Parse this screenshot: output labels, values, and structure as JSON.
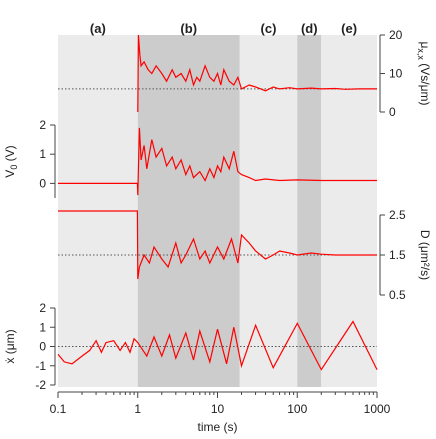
{
  "chart_data": {
    "type": "line",
    "x_axis": {
      "scale": "log",
      "range": [
        0.1,
        1000
      ],
      "ticks": [
        "0.1",
        "1",
        "10",
        "100",
        "1000"
      ],
      "label": "time (s)"
    },
    "phases": [
      {
        "label": "(a)",
        "start": 0.1,
        "end": 1,
        "color": "#ebebeb"
      },
      {
        "label": "(b)",
        "start": 1,
        "end": 19,
        "color": "#cccccc"
      },
      {
        "label": "(c)",
        "start": 19,
        "end": 100,
        "color": "#ebebeb"
      },
      {
        "label": "(d)",
        "start": 100,
        "end": 200,
        "color": "#cccccc"
      },
      {
        "label": "(e)",
        "start": 200,
        "end": 1000,
        "color": "#ebebeb"
      }
    ],
    "panels": [
      {
        "id": "mu",
        "y_side": "right",
        "ylabel_main": "μ",
        "ylabel_sub": "x,x",
        "ylabel_unit": " (Vs/μm)",
        "ylim": [
          0,
          20
        ],
        "yticks": [
          "0",
          "10",
          "20"
        ],
        "reference": 6,
        "series": {
          "name": "μx,x",
          "color": "#ff0000",
          "x": [
            1,
            1.02,
            1.06,
            1.1,
            1.2,
            1.35,
            1.5,
            1.7,
            2,
            2.3,
            2.7,
            3,
            3.5,
            4,
            4.5,
            5,
            5.5,
            6,
            7,
            8,
            9,
            10,
            11,
            12,
            14,
            16,
            18,
            20,
            25,
            30,
            40,
            50,
            60,
            80,
            100,
            150,
            200,
            300,
            400,
            600,
            800,
            1000
          ],
          "y": [
            0,
            20,
            15,
            12,
            13,
            11,
            10,
            12,
            10,
            8,
            11,
            9,
            10,
            8,
            11,
            7,
            9,
            8,
            12,
            9,
            8,
            10,
            7,
            11,
            8,
            7,
            9,
            6,
            7,
            6.5,
            5.5,
            6.5,
            6,
            6.3,
            6,
            6.2,
            6,
            6.1,
            5.9,
            6,
            6,
            6
          ]
        }
      },
      {
        "id": "v0",
        "y_side": "left",
        "ylabel_main": "V",
        "ylabel_sub": "0",
        "ylabel_unit": " (V)",
        "ylim": [
          -0.5,
          2
        ],
        "yticks": [
          "0",
          "1",
          "2"
        ],
        "series": {
          "name": "V0",
          "color": "#ff0000",
          "x": [
            0.1,
            0.99,
            1,
            1.05,
            1.1,
            1.2,
            1.3,
            1.5,
            1.7,
            2,
            2.3,
            2.7,
            3,
            3.5,
            4,
            4.5,
            5,
            6,
            7,
            8,
            9,
            10,
            11,
            12,
            14,
            16,
            18,
            20,
            25,
            30,
            40,
            60,
            100,
            200,
            400,
            1000
          ],
          "y": [
            0,
            0,
            -0.4,
            1.9,
            0.8,
            1.3,
            0.5,
            1.5,
            0.9,
            1.2,
            0.6,
            0.9,
            0.5,
            0.8,
            0.3,
            0.6,
            0.2,
            0.4,
            0.1,
            0.5,
            0.2,
            0.6,
            0.4,
            0.9,
            0.5,
            1.1,
            0.4,
            0.3,
            0.2,
            0.1,
            0.15,
            0.1,
            0.12,
            0.1,
            0.1,
            0.1
          ]
        }
      },
      {
        "id": "D",
        "y_side": "right",
        "ylabel_main": "D",
        "ylabel_unit": " (μm²/s)",
        "ylim": [
          0.5,
          2.5
        ],
        "yticks": [
          "0.5",
          "1.5",
          "2.5"
        ],
        "reference": 1.5,
        "series": {
          "name": "D",
          "color": "#ff0000",
          "x": [
            0.1,
            0.99,
            1,
            1.05,
            1.2,
            1.4,
            1.6,
            2,
            2.4,
            3,
            3.5,
            4,
            5,
            6,
            7,
            8,
            10,
            12,
            15,
            18,
            20,
            25,
            30,
            40,
            50,
            60,
            80,
            100,
            150,
            200,
            300,
            500,
            1000
          ],
          "y": [
            2.6,
            2.6,
            0.9,
            1.2,
            1.5,
            1.3,
            1.7,
            1.4,
            1.2,
            1.8,
            1.3,
            1.5,
            1.9,
            1.4,
            1.6,
            1.3,
            1.7,
            1.4,
            1.9,
            1.3,
            2.0,
            1.8,
            1.6,
            1.4,
            1.5,
            1.6,
            1.55,
            1.5,
            1.55,
            1.52,
            1.5,
            1.5,
            1.5
          ]
        }
      },
      {
        "id": "xdot",
        "y_side": "left",
        "ylabel_main": "ẋ",
        "ylabel_unit": " (μm)",
        "ylim": [
          -2,
          2
        ],
        "yticks": [
          "-2",
          "-1",
          "0",
          "1",
          "2"
        ],
        "reference": 0,
        "series": {
          "name": "ẋ",
          "color": "#ff0000",
          "x": [
            0.1,
            0.12,
            0.15,
            0.2,
            0.25,
            0.3,
            0.35,
            0.4,
            0.5,
            0.6,
            0.7,
            0.8,
            0.9,
            1,
            1.3,
            1.6,
            2,
            2.5,
            3,
            4,
            5,
            6,
            8,
            10,
            13,
            16,
            20,
            30,
            50,
            100,
            200,
            500,
            1000
          ],
          "y": [
            -0.4,
            -0.8,
            -0.9,
            -0.5,
            -0.2,
            0.3,
            -0.3,
            0.2,
            0.3,
            -0.2,
            0.2,
            -0.3,
            0.4,
            0.2,
            -0.5,
            0.5,
            -0.5,
            0.6,
            -0.6,
            0.7,
            -0.7,
            0.8,
            -0.8,
            0.9,
            -0.9,
            1.0,
            -1.0,
            1.1,
            -1.1,
            1.2,
            -1.2,
            1.3,
            -1.2
          ]
        }
      }
    ]
  }
}
